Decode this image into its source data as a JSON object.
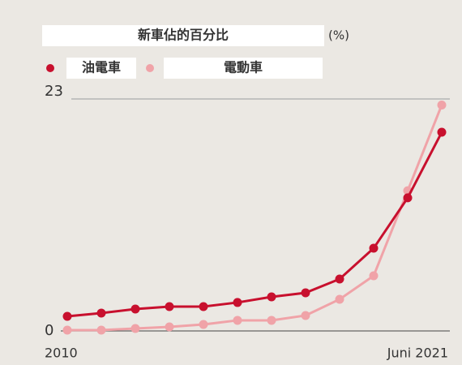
{
  "chart_data": {
    "type": "line",
    "title": "新車佔的百分比",
    "unit": "(%)",
    "categories": [
      "2010",
      null,
      null,
      null,
      null,
      null,
      null,
      null,
      null,
      null,
      null,
      "Juni 2021"
    ],
    "series": [
      {
        "name": "油電車",
        "color": "#c8102e",
        "values": [
          1.45,
          1.77,
          2.17,
          2.41,
          2.41,
          2.82,
          3.38,
          3.78,
          5.15,
          8.2,
          13.2,
          19.7
        ]
      },
      {
        "name": "電動車",
        "color": "#f0a3a8",
        "values": [
          0.08,
          0.08,
          0.24,
          0.4,
          0.64,
          1.05,
          1.05,
          1.53,
          3.14,
          5.47,
          13.9,
          22.4
        ]
      }
    ],
    "ylim": [
      0,
      23
    ],
    "yticks": [
      0,
      23
    ],
    "grid": true
  }
}
